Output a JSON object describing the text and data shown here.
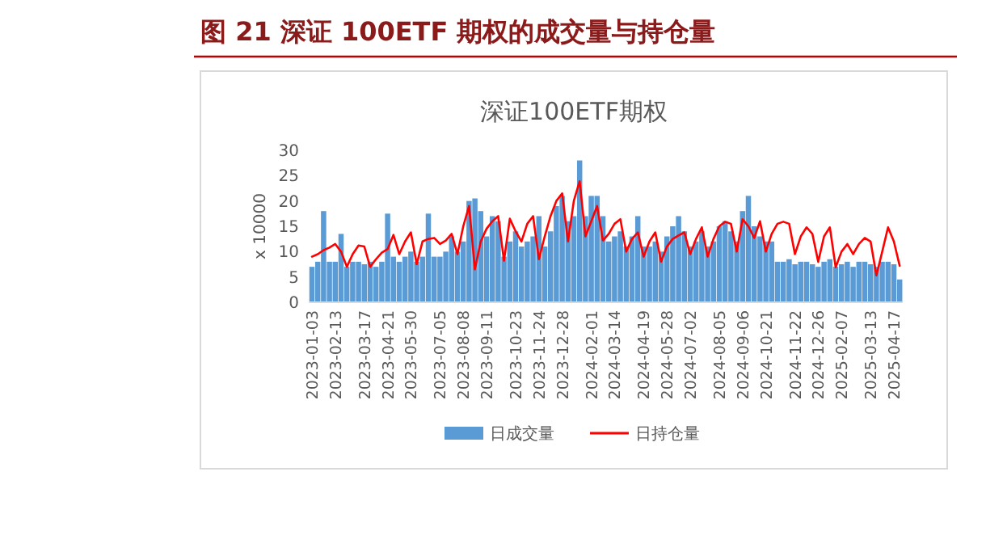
{
  "chart_data": {
    "type": "bar",
    "title": "图 21 深证 100ETF 期权的成交量与持仓量",
    "subtitle": "深证100ETF期权",
    "ylabel": "x 10000",
    "ylim": [
      0,
      30
    ],
    "yticks": [
      0,
      5,
      10,
      15,
      20,
      25,
      30
    ],
    "legend": "bottom",
    "categories": [
      "2023-01-03",
      null,
      null,
      null,
      "2023-02-13",
      null,
      null,
      null,
      null,
      "2023-03-17",
      null,
      null,
      null,
      "2023-04-21",
      null,
      null,
      null,
      "2023-05-30",
      null,
      null,
      null,
      null,
      "2023-07-05",
      null,
      null,
      null,
      "2023-08-08",
      null,
      null,
      null,
      "2023-09-11",
      null,
      null,
      null,
      null,
      "2023-10-23",
      null,
      null,
      null,
      "2023-11-24",
      null,
      null,
      null,
      "2023-12-28",
      null,
      null,
      null,
      null,
      "2024-02-01",
      null,
      null,
      null,
      "2024-03-14",
      null,
      null,
      null,
      null,
      "2024-04-19",
      null,
      null,
      null,
      "2024-05-28",
      null,
      null,
      null,
      "2024-07-02",
      null,
      null,
      null,
      null,
      "2024-08-05",
      null,
      null,
      null,
      "2024-09-06",
      null,
      null,
      null,
      "2024-10-21",
      null,
      null,
      null,
      null,
      "2024-11-22",
      null,
      null,
      null,
      "2024-12-26",
      null,
      null,
      null,
      "2025-02-07",
      null,
      null,
      null,
      null,
      "2025-03-13",
      null,
      null,
      null,
      "2025-04-17",
      null
    ],
    "series": [
      {
        "name": "日成交量",
        "color": "#5b9bd5",
        "values": [
          7,
          8,
          18,
          8,
          8,
          13.5,
          7,
          8,
          8,
          7.5,
          8,
          7,
          8,
          17.5,
          9,
          8,
          9,
          10,
          8,
          9,
          17.5,
          9,
          9,
          10,
          13,
          10,
          12,
          20,
          20.5,
          18,
          13,
          17,
          16,
          9,
          12,
          14,
          11,
          12,
          13,
          17,
          11,
          14,
          19,
          21,
          16,
          17,
          28,
          17,
          21,
          21,
          17,
          12,
          13,
          14,
          11,
          13,
          17,
          11,
          11,
          12,
          10,
          13,
          15,
          17,
          14,
          11,
          12,
          14,
          11,
          12,
          15,
          16,
          14,
          12,
          18,
          21,
          15,
          13,
          12,
          12,
          8,
          8,
          8.5,
          7.5,
          8,
          8,
          7.5,
          7,
          8,
          8.5,
          7,
          7.5,
          8,
          7,
          8,
          8,
          7.5,
          7,
          8,
          8,
          7.5,
          4.5
        ]
      },
      {
        "name": "日持仓量",
        "type": "line",
        "color": "#ff0000",
        "values": [
          9,
          9.5,
          10.3,
          10.8,
          11.5,
          10,
          7,
          9.5,
          11.2,
          11,
          7,
          8.5,
          9.8,
          10.5,
          13.3,
          9.5,
          12,
          13.8,
          7.5,
          12,
          12.5,
          12.7,
          11.5,
          12.2,
          13.5,
          9.5,
          15,
          19,
          6.5,
          12,
          14.5,
          16,
          17,
          8.2,
          16.5,
          14,
          12,
          15.5,
          17,
          8.5,
          13,
          17,
          20,
          21.5,
          12,
          20,
          23.9,
          13,
          16,
          19,
          12.2,
          13.5,
          15.5,
          16.4,
          10,
          12.5,
          13.8,
          9,
          12,
          13.8,
          8,
          11,
          12.5,
          13.2,
          13.8,
          9.5,
          12.5,
          14.8,
          9,
          12.5,
          15,
          15.9,
          15.5,
          10,
          16.4,
          15,
          12.7,
          16,
          10,
          13.5,
          15.5,
          15.9,
          15.5,
          9.5,
          13,
          14.8,
          13.5,
          8,
          13,
          14.8,
          6.9,
          10,
          11.5,
          9.5,
          11.5,
          12.7,
          12,
          5.3,
          10,
          14.8,
          12,
          7.2
        ]
      }
    ]
  }
}
